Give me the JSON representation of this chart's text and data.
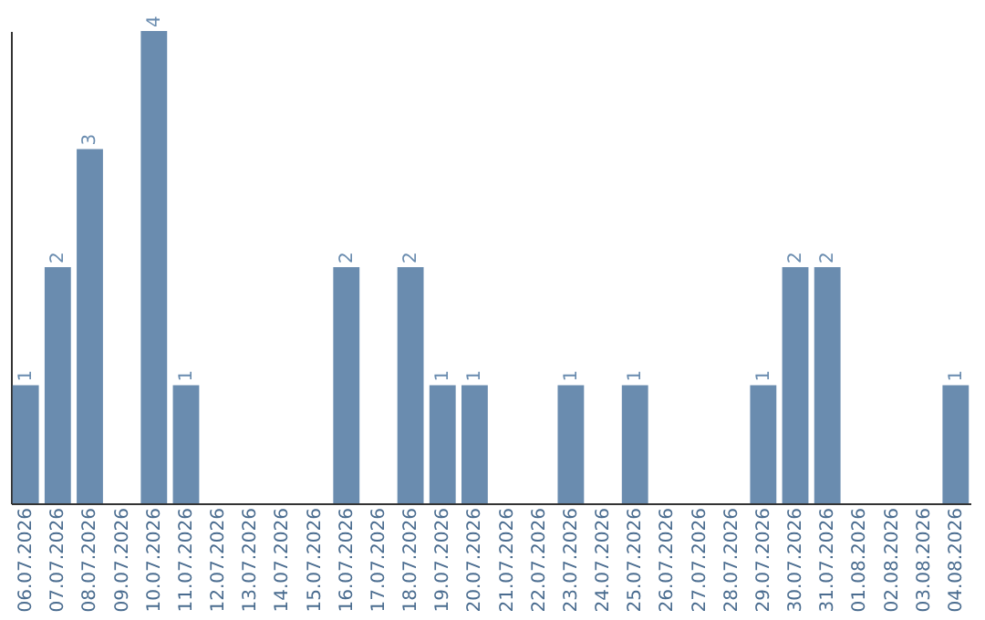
{
  "chart_data": {
    "type": "bar",
    "categories": [
      "06.07.2026",
      "07.07.2026",
      "08.07.2026",
      "09.07.2026",
      "10.07.2026",
      "11.07.2026",
      "12.07.2026",
      "13.07.2026",
      "14.07.2026",
      "15.07.2026",
      "16.07.2026",
      "17.07.2026",
      "18.07.2026",
      "19.07.2026",
      "20.07.2026",
      "21.07.2026",
      "22.07.2026",
      "23.07.2026",
      "24.07.2026",
      "25.07.2026",
      "26.07.2026",
      "27.07.2026",
      "28.07.2026",
      "29.07.2026",
      "30.07.2026",
      "31.07.2026",
      "01.08.2026",
      "02.08.2026",
      "03.08.2026",
      "04.08.2026"
    ],
    "values": [
      1,
      2,
      3,
      0,
      4,
      1,
      0,
      0,
      0,
      0,
      2,
      0,
      2,
      1,
      1,
      0,
      0,
      1,
      0,
      1,
      0,
      0,
      0,
      1,
      2,
      2,
      0,
      0,
      0,
      1
    ],
    "value_labels": [
      "1",
      "2",
      "3",
      null,
      "4",
      "1",
      null,
      null,
      null,
      null,
      "2",
      null,
      "2",
      "1",
      "1",
      null,
      null,
      "1",
      null,
      "1",
      null,
      null,
      null,
      "1",
      "2",
      "2",
      null,
      null,
      null,
      "1"
    ],
    "color": "#6a8caf",
    "grid": false
  }
}
